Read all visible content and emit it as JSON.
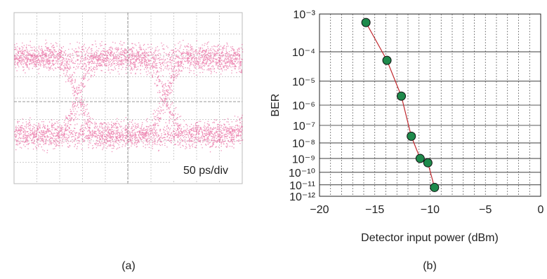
{
  "figure_a": {
    "annotation": "50 ps/div",
    "caption": "(a)"
  },
  "chart_data": {
    "type": "scatter",
    "caption": "(b)",
    "x_label": "Detector input power (dBm)",
    "y_label": "BER",
    "xlim": [
      -20,
      0
    ],
    "xticks": [
      {
        "value": -20,
        "label": "−20"
      },
      {
        "value": -15,
        "label": "−15"
      },
      {
        "value": -10,
        "label": "−10"
      },
      {
        "value": -5,
        "label": "−5"
      },
      0
    ],
    "yscale": "log-log",
    "ylim": [
      0.001,
      1e-12
    ],
    "yticks": [
      {
        "value": 0.001,
        "label": "10⁻³"
      },
      {
        "value": 0.0001,
        "label": "10⁻⁴"
      },
      {
        "value": 1e-05,
        "label": "10⁻⁵"
      },
      {
        "value": 1e-06,
        "label": "10⁻⁶"
      },
      {
        "value": 1e-07,
        "label": "10⁻⁷"
      },
      {
        "value": 1e-08,
        "label": "10⁻⁸"
      },
      {
        "value": 1e-09,
        "label": "10⁻⁹"
      },
      {
        "value": 1e-10,
        "label": "10⁻¹⁰"
      },
      {
        "value": 1e-11,
        "label": "10⁻¹¹"
      },
      {
        "value": 1e-12,
        "label": "10⁻¹²"
      }
    ],
    "grid": true,
    "marker_color": "#1f8a4c",
    "line_color": "#c0272d",
    "x": [
      -15.8,
      -13.9,
      -12.6,
      -11.7,
      -10.9,
      -10.2,
      -9.6
    ],
    "values": [
      0.00063,
      5.4e-05,
      2.5e-06,
      2.5e-08,
      1e-09,
      5e-10,
      6e-12
    ]
  }
}
